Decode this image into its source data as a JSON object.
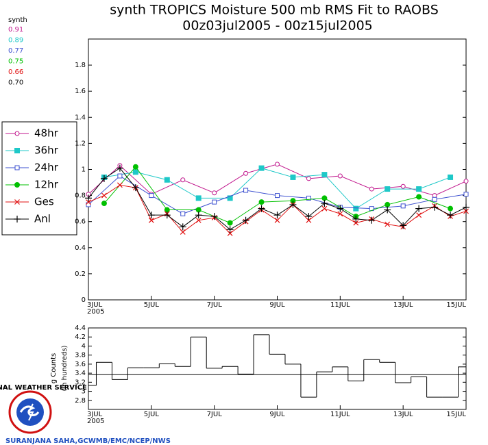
{
  "chart_data": [
    {
      "type": "line",
      "title": "synth TROPICS Moisture 500 mb RMS Fit to RAOBS",
      "subtitle": "00z03jul2005 - 00z15jul2005",
      "stats_title": "synth",
      "x_year": "2005",
      "xlim": [
        3,
        15
      ],
      "xticks": [
        {
          "value": 3,
          "label": "3JUL"
        },
        {
          "value": 5,
          "label": "5JUL"
        },
        {
          "value": 7,
          "label": "7JUL"
        },
        {
          "value": 9,
          "label": "9JUL"
        },
        {
          "value": 11,
          "label": "11JUL"
        },
        {
          "value": 13,
          "label": "13JUL"
        },
        {
          "value": 15,
          "label": "15JUL"
        }
      ],
      "ylim": [
        0,
        2
      ],
      "yticks": [
        0,
        0.2,
        0.4,
        0.6,
        0.8,
        1,
        1.2,
        1.4,
        1.6,
        1.8
      ],
      "series": [
        {
          "name": "48hr",
          "color": "#c0158c",
          "marker": "open-circle",
          "mean": "0.91",
          "x": [
            3,
            4,
            5,
            6,
            7,
            8,
            9,
            10,
            11,
            12,
            13,
            14,
            15
          ],
          "values": [
            0.81,
            1.03,
            0.81,
            0.92,
            0.82,
            0.97,
            1.04,
            0.93,
            0.95,
            0.85,
            0.87,
            0.8,
            0.91
          ]
        },
        {
          "name": "36hr",
          "color": "#1ec8c8",
          "marker": "filled-square",
          "mean": "0.89",
          "x": [
            3.5,
            4.5,
            5.5,
            6.5,
            7.5,
            8.5,
            9.5,
            10.5,
            11.5,
            12.5,
            13.5,
            14.5
          ],
          "values": [
            0.94,
            0.98,
            0.92,
            0.78,
            0.78,
            1.01,
            0.94,
            0.96,
            0.7,
            0.85,
            0.85,
            0.94
          ]
        },
        {
          "name": "24hr",
          "color": "#3c50d0",
          "marker": "open-square",
          "mean": "0.77",
          "x": [
            3,
            4,
            5,
            6,
            7,
            8,
            9,
            10,
            11,
            12,
            13,
            14,
            15
          ],
          "values": [
            0.73,
            0.95,
            0.8,
            0.66,
            0.75,
            0.84,
            0.8,
            0.78,
            0.71,
            0.7,
            0.72,
            0.77,
            0.81
          ]
        },
        {
          "name": "12hr",
          "color": "#00c000",
          "marker": "filled-circle",
          "mean": "0.75",
          "x": [
            3.5,
            4.5,
            5.5,
            6.5,
            7.5,
            8.5,
            9.5,
            10.5,
            11.5,
            12.5,
            13.5,
            14.5
          ],
          "values": [
            0.74,
            1.02,
            0.69,
            0.69,
            0.59,
            0.75,
            0.76,
            0.78,
            0.64,
            0.73,
            0.79,
            0.7
          ]
        },
        {
          "name": "Ges",
          "color": "#e01010",
          "marker": "cross",
          "mean": "0.66",
          "x": [
            3,
            3.5,
            4,
            4.5,
            5,
            5.5,
            6,
            6.5,
            7,
            7.5,
            8,
            8.5,
            9,
            9.5,
            10,
            10.5,
            11,
            11.5,
            12,
            12.5,
            13,
            13.5,
            14,
            14.5,
            15
          ],
          "values": [
            0.75,
            0.8,
            0.88,
            0.86,
            0.61,
            0.66,
            0.52,
            0.61,
            0.63,
            0.51,
            0.6,
            0.69,
            0.61,
            0.73,
            0.61,
            0.7,
            0.66,
            0.59,
            0.62,
            0.58,
            0.56,
            0.65,
            0.72,
            0.64,
            0.68
          ]
        },
        {
          "name": "Anl",
          "color": "#000000",
          "marker": "plus",
          "mean": "0.70",
          "x": [
            3,
            3.5,
            4,
            4.5,
            5,
            5.5,
            6,
            6.5,
            7,
            7.5,
            8,
            8.5,
            9,
            9.5,
            10,
            10.5,
            11,
            11.5,
            12,
            12.5,
            13,
            13.5,
            14,
            14.5,
            15
          ],
          "values": [
            0.78,
            0.93,
            1.01,
            0.86,
            0.65,
            0.65,
            0.56,
            0.65,
            0.64,
            0.54,
            0.61,
            0.7,
            0.65,
            0.73,
            0.64,
            0.74,
            0.7,
            0.62,
            0.61,
            0.69,
            0.57,
            0.7,
            0.71,
            0.65,
            0.71
          ]
        }
      ]
    },
    {
      "type": "step",
      "y_label": [
        "g Counts",
        "(in hundreds)"
      ],
      "x_year": "2005",
      "color": "#000000",
      "xlim": [
        3,
        15
      ],
      "xticks": [
        {
          "value": 3,
          "label": "3JUL"
        },
        {
          "value": 5,
          "label": "5JUL"
        },
        {
          "value": 7,
          "label": "7JUL"
        },
        {
          "value": 9,
          "label": "9JUL"
        },
        {
          "value": 11,
          "label": "11JUL"
        },
        {
          "value": 13,
          "label": "13JUL"
        },
        {
          "value": 15,
          "label": "15JUL"
        }
      ],
      "ylim": [
        2.6,
        4.4
      ],
      "yticks": [
        2.8,
        3,
        3.2,
        3.4,
        3.6,
        3.8,
        4,
        4.2,
        4.4
      ],
      "mean_line": 3.37,
      "x": [
        3,
        3.5,
        4,
        4.5,
        5,
        5.5,
        6,
        6.5,
        7,
        7.5,
        8,
        8.5,
        9,
        9.5,
        10,
        10.5,
        11,
        11.5,
        12,
        12.5,
        13,
        13.5,
        14,
        14.5,
        15
      ],
      "values": [
        3.13,
        3.64,
        3.26,
        3.52,
        3.52,
        3.61,
        3.55,
        4.2,
        3.51,
        3.55,
        3.38,
        4.25,
        3.82,
        3.6,
        2.87,
        3.43,
        3.54,
        3.23,
        3.7,
        3.64,
        3.19,
        3.32,
        2.87,
        2.87,
        3.54
      ]
    }
  ],
  "footer": "SURANJANA SAHA,GCWMB/EMC/NCEP/NWS",
  "logo_text": "NATIONAL WEATHER SERVICE"
}
